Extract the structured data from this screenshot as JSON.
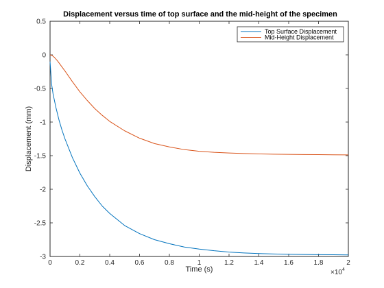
{
  "chart_data": {
    "type": "line",
    "title": "Displacement versus time of top surface and the mid-height of the specimen",
    "xlabel": "Time (s)",
    "ylabel": "Displacement (mm)",
    "xlim": [
      0,
      2
    ],
    "ylim": [
      -3,
      0.5
    ],
    "x_ticks": [
      0,
      0.2,
      0.4,
      0.6,
      0.8,
      1,
      1.2,
      1.4,
      1.6,
      1.8,
      2
    ],
    "x_tick_labels": [
      "0",
      "0.2",
      "0.4",
      "0.6",
      "0.8",
      "1",
      "1.2",
      "1.4",
      "1.6",
      "1.8",
      "2"
    ],
    "y_ticks": [
      -3,
      -2.5,
      -2,
      -1.5,
      -1,
      -0.5,
      0,
      0.5
    ],
    "y_tick_labels": [
      "-3",
      "-2.5",
      "-2",
      "-1.5",
      "-1",
      "-0.5",
      "0",
      "0.5"
    ],
    "x_multiplier_label": "×10",
    "x_multiplier_exponent": "4",
    "grid": false,
    "legend_position": "top-right",
    "series": [
      {
        "name": "Top Surface Displacement",
        "color": "#0072bd",
        "x": [
          0,
          0.01,
          0.02,
          0.04,
          0.06,
          0.08,
          0.1,
          0.15,
          0.2,
          0.25,
          0.3,
          0.35,
          0.4,
          0.5,
          0.6,
          0.7,
          0.8,
          0.9,
          1.0,
          1.1,
          1.2,
          1.3,
          1.4,
          1.5,
          1.6,
          1.7,
          1.8,
          1.9,
          2.0
        ],
        "y": [
          -0.1,
          -0.43,
          -0.58,
          -0.79,
          -0.97,
          -1.12,
          -1.25,
          -1.53,
          -1.76,
          -1.95,
          -2.11,
          -2.25,
          -2.36,
          -2.54,
          -2.66,
          -2.75,
          -2.81,
          -2.86,
          -2.89,
          -2.915,
          -2.935,
          -2.948,
          -2.957,
          -2.963,
          -2.968,
          -2.971,
          -2.973,
          -2.975,
          -2.977
        ]
      },
      {
        "name": "Mid-Height Displacement",
        "color": "#d95319",
        "x": [
          0,
          0.01,
          0.02,
          0.03,
          0.05,
          0.07,
          0.1,
          0.15,
          0.2,
          0.25,
          0.3,
          0.35,
          0.4,
          0.5,
          0.6,
          0.7,
          0.8,
          0.9,
          1.0,
          1.1,
          1.2,
          1.3,
          1.4,
          1.5,
          1.6,
          1.7,
          1.8,
          1.9,
          2.0
        ],
        "y": [
          0,
          -0.005,
          -0.02,
          -0.04,
          -0.09,
          -0.15,
          -0.24,
          -0.4,
          -0.55,
          -0.68,
          -0.8,
          -0.9,
          -0.99,
          -1.13,
          -1.24,
          -1.32,
          -1.37,
          -1.41,
          -1.435,
          -1.45,
          -1.46,
          -1.468,
          -1.474,
          -1.478,
          -1.481,
          -1.483,
          -1.485,
          -1.487,
          -1.488
        ]
      }
    ]
  }
}
